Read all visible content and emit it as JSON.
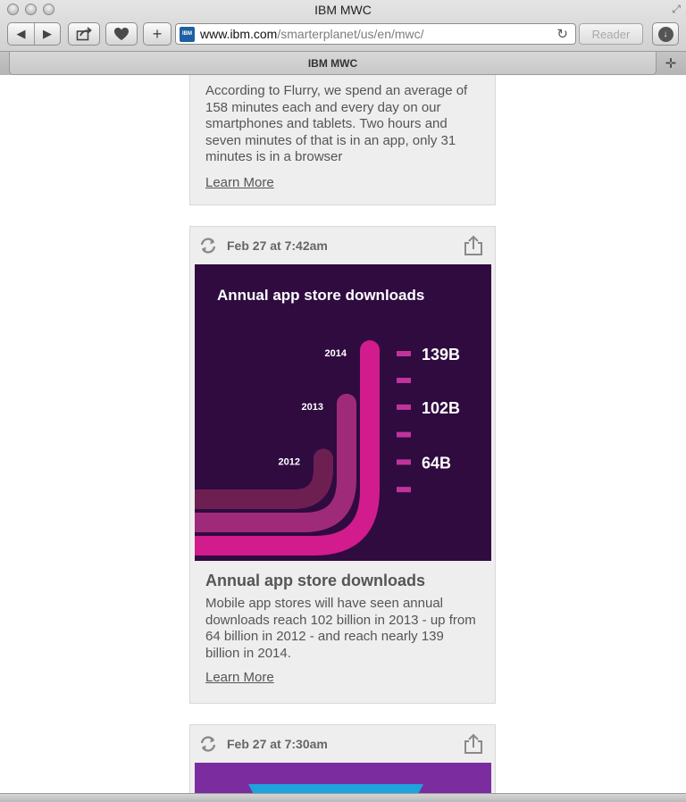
{
  "window": {
    "title": "IBM MWC"
  },
  "toolbar": {
    "url_host": "www.ibm.com",
    "url_path": "/smarterplanet/us/en/mwc/",
    "favicon_text": "IBM",
    "reader_label": "Reader"
  },
  "tabs": [
    {
      "label": "IBM MWC"
    }
  ],
  "icons": {
    "back": "back-arrow-icon",
    "forward": "forward-arrow-icon",
    "share": "share-icon",
    "favorite": "heart-icon",
    "add": "plus-icon",
    "reload": "reload-icon",
    "download": "download-icon",
    "sync": "sync-icon",
    "new_tab": "plus-icon"
  },
  "feed": {
    "cards": [
      {
        "body": "According to Flurry, we spend an average of 158 minutes each and every day on our smartphones and tablets. Two hours and seven minutes of that is in an app, only 31 minutes is in a browser",
        "learn_more": "Learn More"
      },
      {
        "date": "Feb 27 at 7:42am",
        "title": "Annual app store downloads",
        "body": "Mobile app stores will have seen annual downloads reach 102 billion in 2013 - up from 64 billion in 2012 - and reach nearly 139 billion in 2014.",
        "learn_more": "Learn More",
        "infographic": {
          "title": "Annual app store downloads",
          "bars": [
            {
              "year": "2014",
              "value_label": "139B",
              "value": 139,
              "color": "#d21b8d"
            },
            {
              "year": "2013",
              "value_label": "102B",
              "value": 102,
              "color": "#a02a7a"
            },
            {
              "year": "2012",
              "value_label": "64B",
              "value": 64,
              "color": "#6e1f52"
            }
          ],
          "background": "#2f0b40"
        }
      },
      {
        "date": "Feb 27 at 7:30am",
        "preview_colors": [
          "#7b2d9f",
          "#1fa3dd"
        ]
      }
    ]
  }
}
